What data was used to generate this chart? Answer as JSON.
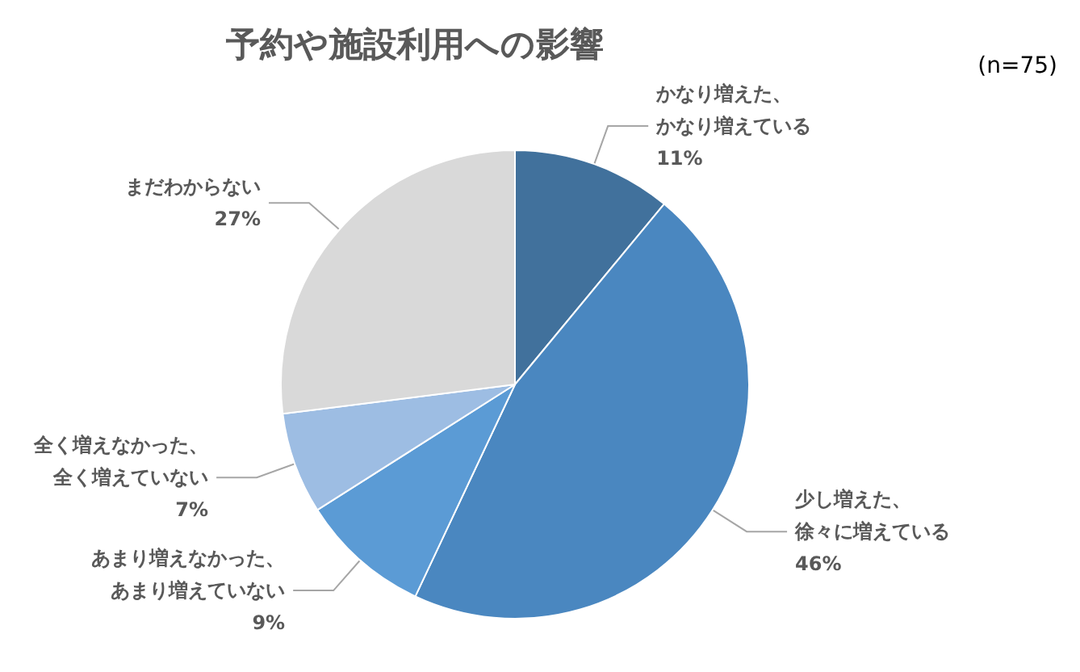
{
  "chart_data": {
    "type": "pie",
    "title": "予約や施設利用への影響",
    "annotations": [
      "(n=75)"
    ],
    "categories": [
      "かなり増えた、かなり増えている",
      "少し増えた、徐々に増えている",
      "あまり増えなかった、あまり増えていない",
      "全く増えなかった、全く増えていない",
      "まだわからない"
    ],
    "value_labels": [
      "11%",
      "46%",
      "9%",
      "7%",
      "27%"
    ],
    "values": [
      11,
      46,
      9,
      7,
      27
    ],
    "colors": [
      "#41719c",
      "#4a87c0",
      "#5b9bd5",
      "#9dbde3",
      "#d9d9d9"
    ],
    "legend": false
  }
}
